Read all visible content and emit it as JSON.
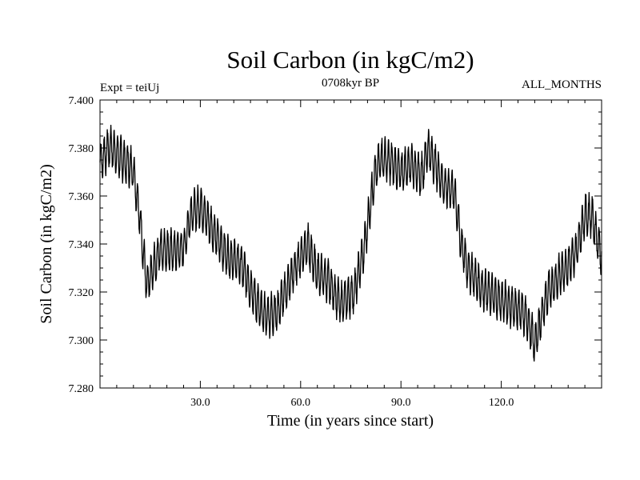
{
  "chart_data": {
    "type": "line",
    "title": "Soil Carbon (in kgC/m2)",
    "subtitle": "0708kyr BP",
    "left_label": "Expt = teiUj",
    "right_label": "ALL_MONTHS",
    "xlabel": "Time (in years since start)",
    "ylabel": "Soil Carbon (in kgC/m2)",
    "xlim": [
      0,
      150
    ],
    "ylim": [
      7.28,
      7.4
    ],
    "xticks": [
      30,
      60,
      90,
      120
    ],
    "xtick_labels": [
      "30.0",
      "60.0",
      "90.0",
      "120.0"
    ],
    "yticks": [
      7.28,
      7.3,
      7.32,
      7.34,
      7.36,
      7.38,
      7.4
    ],
    "ytick_labels": [
      "7.280",
      "7.300",
      "7.320",
      "7.340",
      "7.360",
      "7.380",
      "7.400"
    ],
    "series": [
      {
        "name": "Soil Carbon",
        "color": "#000000",
        "seasonal_amplitude": 0.008,
        "trend": {
          "x": [
            0,
            3,
            6,
            10,
            12,
            14,
            18,
            22,
            25,
            27,
            30,
            34,
            38,
            42,
            45,
            48,
            50,
            53,
            56,
            59,
            62,
            65,
            68,
            72,
            76,
            79,
            82,
            84,
            87,
            90,
            93,
            96,
            98,
            100,
            103,
            106,
            108,
            110,
            114,
            118,
            122,
            126,
            128,
            130,
            132,
            134,
            138,
            142,
            145,
            147,
            150
          ],
          "y": [
            7.374,
            7.381,
            7.376,
            7.371,
            7.35,
            7.322,
            7.338,
            7.337,
            7.338,
            7.352,
            7.356,
            7.345,
            7.335,
            7.332,
            7.322,
            7.312,
            7.31,
            7.312,
            7.322,
            7.332,
            7.34,
            7.328,
            7.325,
            7.315,
            7.32,
            7.338,
            7.368,
            7.376,
            7.374,
            7.37,
            7.374,
            7.368,
            7.38,
            7.374,
            7.364,
            7.362,
            7.34,
            7.33,
            7.322,
            7.318,
            7.315,
            7.312,
            7.308,
            7.298,
            7.31,
            7.32,
            7.328,
            7.335,
            7.352,
            7.352,
            7.335
          ]
        }
      }
    ]
  }
}
